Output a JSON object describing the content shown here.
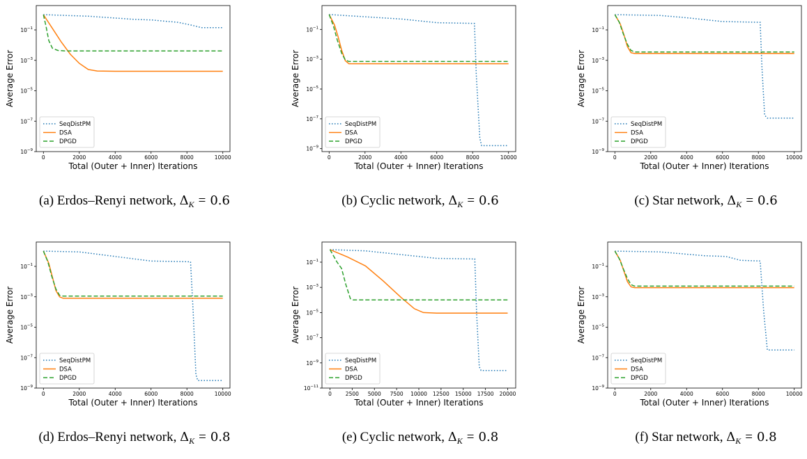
{
  "chart_data": [
    {
      "type": "line",
      "ylabel": "Average Error",
      "xlabel": "Total (Outer + Inner) Iterations",
      "xlim": [
        -400,
        10400
      ],
      "ylim_log10": [
        -9,
        0.6
      ],
      "xticks": [
        0,
        2000,
        4000,
        6000,
        8000,
        10000
      ],
      "yticks_exp": [
        -9,
        -7,
        -5,
        -3,
        -1
      ],
      "yscale": "log",
      "legend": "lower-left",
      "caption": {
        "prefix": "(a) Erdos–Renyi network,",
        "delta": "Δ",
        "sub": "K",
        "eq": "=",
        "value": "0.6"
      },
      "series": [
        {
          "name": "SeqDistPM",
          "style": "dotted",
          "color": "#1f77b4",
          "points": [
            [
              0,
              0
            ],
            [
              2500,
              -0.1
            ],
            [
              5000,
              -0.3
            ],
            [
              6100,
              -0.35
            ],
            [
              7000,
              -0.45
            ],
            [
              7500,
              -0.5
            ],
            [
              8300,
              -0.7
            ],
            [
              8800,
              -0.85
            ],
            [
              10000,
              -0.85
            ]
          ]
        },
        {
          "name": "DSA",
          "style": "solid",
          "color": "#ff7f0e",
          "points": [
            [
              0,
              0
            ],
            [
              500,
              -0.9
            ],
            [
              1000,
              -1.8
            ],
            [
              1500,
              -2.6
            ],
            [
              2000,
              -3.2
            ],
            [
              2500,
              -3.6
            ],
            [
              3000,
              -3.7
            ],
            [
              4000,
              -3.72
            ],
            [
              10000,
              -3.72
            ]
          ]
        },
        {
          "name": "DPGD",
          "style": "dashed",
          "color": "#2ca02c",
          "points": [
            [
              0,
              0
            ],
            [
              150,
              -0.8
            ],
            [
              300,
              -1.7
            ],
            [
              500,
              -2.2
            ],
            [
              800,
              -2.35
            ],
            [
              1200,
              -2.38
            ],
            [
              10000,
              -2.38
            ]
          ]
        }
      ]
    },
    {
      "type": "line",
      "ylabel": "Average Error",
      "xlabel": "Total (Outer + Inner) Iterations",
      "xlim": [
        -400,
        10400
      ],
      "ylim_log10": [
        -9.2,
        0.6
      ],
      "xticks": [
        0,
        2000,
        4000,
        6000,
        8000,
        10000
      ],
      "yticks_exp": [
        -9,
        -7,
        -5,
        -3,
        -1
      ],
      "yscale": "log",
      "legend": "lower-left",
      "caption": {
        "prefix": "(b) Cyclic network,",
        "delta": "Δ",
        "sub": "K",
        "eq": "=",
        "value": "0.6"
      },
      "series": [
        {
          "name": "SeqDistPM",
          "style": "dotted",
          "color": "#1f77b4",
          "points": [
            [
              0,
              0
            ],
            [
              2000,
              -0.15
            ],
            [
              4000,
              -0.3
            ],
            [
              6000,
              -0.55
            ],
            [
              8100,
              -0.6
            ],
            [
              8200,
              -4
            ],
            [
              8400,
              -8.3
            ],
            [
              8500,
              -8.8
            ],
            [
              10000,
              -8.8
            ]
          ]
        },
        {
          "name": "DSA",
          "style": "solid",
          "color": "#ff7f0e",
          "points": [
            [
              0,
              0
            ],
            [
              300,
              -0.7
            ],
            [
              500,
              -1.5
            ],
            [
              700,
              -2.4
            ],
            [
              900,
              -3.1
            ],
            [
              1100,
              -3.3
            ],
            [
              10000,
              -3.3
            ]
          ]
        },
        {
          "name": "DPGD",
          "style": "dashed",
          "color": "#2ca02c",
          "points": [
            [
              0,
              0
            ],
            [
              250,
              -0.8
            ],
            [
              450,
              -1.7
            ],
            [
              700,
              -2.6
            ],
            [
              900,
              -3.05
            ],
            [
              1100,
              -3.15
            ],
            [
              10000,
              -3.15
            ]
          ]
        }
      ]
    },
    {
      "type": "line",
      "ylabel": "Average Error",
      "xlabel": "Total (Outer + Inner) Iterations",
      "xlim": [
        -400,
        10400
      ],
      "ylim_log10": [
        -9,
        0.6
      ],
      "xticks": [
        0,
        2000,
        4000,
        6000,
        8000,
        10000
      ],
      "yticks_exp": [
        -9,
        -7,
        -5,
        -3,
        -1
      ],
      "yscale": "log",
      "legend": "lower-left",
      "caption": {
        "prefix": "(c) Star network,",
        "delta": "Δ",
        "sub": "K",
        "eq": "=",
        "value": "0.6"
      },
      "series": [
        {
          "name": "SeqDistPM",
          "style": "dotted",
          "color": "#1f77b4",
          "points": [
            [
              0,
              0
            ],
            [
              2500,
              -0.05
            ],
            [
              4000,
              -0.2
            ],
            [
              6000,
              -0.45
            ],
            [
              8100,
              -0.5
            ],
            [
              8200,
              -3.5
            ],
            [
              8350,
              -6.6
            ],
            [
              8500,
              -6.8
            ],
            [
              10000,
              -6.8
            ]
          ]
        },
        {
          "name": "DSA",
          "style": "solid",
          "color": "#ff7f0e",
          "points": [
            [
              0,
              0
            ],
            [
              300,
              -0.6
            ],
            [
              500,
              -1.3
            ],
            [
              700,
              -2.1
            ],
            [
              900,
              -2.5
            ],
            [
              1100,
              -2.55
            ],
            [
              10000,
              -2.55
            ]
          ]
        },
        {
          "name": "DPGD",
          "style": "dashed",
          "color": "#2ca02c",
          "points": [
            [
              0,
              0
            ],
            [
              250,
              -0.5
            ],
            [
              450,
              -1.2
            ],
            [
              700,
              -1.95
            ],
            [
              900,
              -2.35
            ],
            [
              1100,
              -2.45
            ],
            [
              10000,
              -2.45
            ]
          ]
        }
      ]
    },
    {
      "type": "line",
      "ylabel": "Average Error",
      "xlabel": "Total (Outer + Inner) Iterations",
      "xlim": [
        -400,
        10400
      ],
      "ylim_log10": [
        -9,
        0.6
      ],
      "xticks": [
        0,
        2000,
        4000,
        6000,
        8000,
        10000
      ],
      "yticks_exp": [
        -9,
        -7,
        -5,
        -3,
        -1
      ],
      "yscale": "log",
      "legend": "lower-left",
      "caption": {
        "prefix": "(d) Erdos–Renyi network,",
        "delta": "Δ",
        "sub": "K",
        "eq": "=",
        "value": "0.8"
      },
      "series": [
        {
          "name": "SeqDistPM",
          "style": "dotted",
          "color": "#1f77b4",
          "points": [
            [
              0,
              0
            ],
            [
              2000,
              -0.05
            ],
            [
              4000,
              -0.35
            ],
            [
              6000,
              -0.65
            ],
            [
              8200,
              -0.7
            ],
            [
              8350,
              -4
            ],
            [
              8500,
              -8.1
            ],
            [
              8600,
              -8.5
            ],
            [
              10000,
              -8.5
            ]
          ]
        },
        {
          "name": "DSA",
          "style": "solid",
          "color": "#ff7f0e",
          "points": [
            [
              0,
              0
            ],
            [
              300,
              -0.8
            ],
            [
              500,
              -1.7
            ],
            [
              700,
              -2.6
            ],
            [
              900,
              -3.0
            ],
            [
              1100,
              -3.1
            ],
            [
              10000,
              -3.1
            ]
          ]
        },
        {
          "name": "DPGD",
          "style": "dashed",
          "color": "#2ca02c",
          "points": [
            [
              0,
              0
            ],
            [
              250,
              -0.7
            ],
            [
              450,
              -1.6
            ],
            [
              700,
              -2.5
            ],
            [
              900,
              -2.9
            ],
            [
              1100,
              -2.95
            ],
            [
              10000,
              -2.95
            ]
          ]
        }
      ]
    },
    {
      "type": "line",
      "ylabel": "Average Error",
      "xlabel": "Total (Outer + Inner) Iterations",
      "xlim": [
        -900,
        20900
      ],
      "ylim_log10": [
        -11,
        0.6
      ],
      "xticks": [
        0,
        2500,
        5000,
        7500,
        10000,
        12500,
        15000,
        17500,
        20000
      ],
      "yticks_exp": [
        -11,
        -9,
        -7,
        -5,
        -3,
        -1
      ],
      "yscale": "log",
      "legend": "lower-left",
      "caption": {
        "prefix": "(e) Cyclic network,",
        "delta": "Δ",
        "sub": "K",
        "eq": "=",
        "value": "0.8"
      },
      "series": [
        {
          "name": "SeqDistPM",
          "style": "dotted",
          "color": "#1f77b4",
          "points": [
            [
              0,
              0
            ],
            [
              4000,
              -0.1
            ],
            [
              8000,
              -0.4
            ],
            [
              12000,
              -0.7
            ],
            [
              16300,
              -0.75
            ],
            [
              16500,
              -5
            ],
            [
              16800,
              -9.3
            ],
            [
              17000,
              -9.6
            ],
            [
              20000,
              -9.6
            ]
          ]
        },
        {
          "name": "DSA",
          "style": "solid",
          "color": "#ff7f0e",
          "points": [
            [
              0,
              0
            ],
            [
              2000,
              -0.6
            ],
            [
              4000,
              -1.3
            ],
            [
              6000,
              -2.5
            ],
            [
              8000,
              -3.8
            ],
            [
              9500,
              -4.7
            ],
            [
              10500,
              -5.0
            ],
            [
              12000,
              -5.05
            ],
            [
              20000,
              -5.05
            ]
          ]
        },
        {
          "name": "DPGD",
          "style": "dashed",
          "color": "#2ca02c",
          "points": [
            [
              0,
              0
            ],
            [
              800,
              -1.0
            ],
            [
              1300,
              -1.5
            ],
            [
              1800,
              -2.8
            ],
            [
              2300,
              -3.9
            ],
            [
              2600,
              -4.0
            ],
            [
              20000,
              -4.0
            ]
          ]
        }
      ]
    },
    {
      "type": "line",
      "ylabel": "Average Error",
      "xlabel": "Total (Outer + Inner) Iterations",
      "xlim": [
        -400,
        10400
      ],
      "ylim_log10": [
        -9,
        0.6
      ],
      "xticks": [
        0,
        2000,
        4000,
        6000,
        8000,
        10000
      ],
      "yticks_exp": [
        -9,
        -7,
        -5,
        -3,
        -1
      ],
      "yscale": "log",
      "legend": "lower-left",
      "caption": {
        "prefix": "(f) Star network,",
        "delta": "Δ",
        "sub": "K",
        "eq": "=",
        "value": "0.8"
      },
      "series": [
        {
          "name": "SeqDistPM",
          "style": "dotted",
          "color": "#1f77b4",
          "points": [
            [
              0,
              0
            ],
            [
              2500,
              -0.05
            ],
            [
              5000,
              -0.3
            ],
            [
              6200,
              -0.35
            ],
            [
              7000,
              -0.6
            ],
            [
              8100,
              -0.65
            ],
            [
              8300,
              -4
            ],
            [
              8500,
              -6.5
            ],
            [
              10000,
              -6.5
            ]
          ]
        },
        {
          "name": "DSA",
          "style": "solid",
          "color": "#ff7f0e",
          "points": [
            [
              0,
              0
            ],
            [
              300,
              -0.6
            ],
            [
              500,
              -1.3
            ],
            [
              700,
              -2.0
            ],
            [
              900,
              -2.35
            ],
            [
              1100,
              -2.4
            ],
            [
              10000,
              -2.4
            ]
          ]
        },
        {
          "name": "DPGD",
          "style": "dashed",
          "color": "#2ca02c",
          "points": [
            [
              0,
              0
            ],
            [
              250,
              -0.5
            ],
            [
              450,
              -1.1
            ],
            [
              700,
              -1.8
            ],
            [
              900,
              -2.2
            ],
            [
              1100,
              -2.3
            ],
            [
              10000,
              -2.3
            ]
          ]
        }
      ]
    }
  ]
}
